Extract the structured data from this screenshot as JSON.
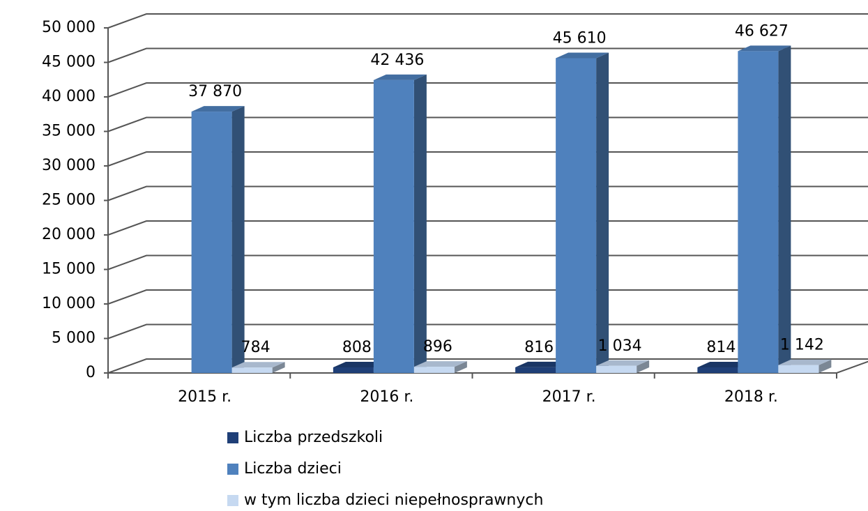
{
  "chart_data": {
    "type": "bar",
    "categories": [
      "2015 r.",
      "2016 r.",
      "2017 r.",
      "2018 r."
    ],
    "series": [
      {
        "name": "Liczba przedszkoli",
        "color": "#1f3f77",
        "values": [
          null,
          808,
          816,
          814
        ]
      },
      {
        "name": "Liczba dzieci",
        "color": "#4f81bd",
        "values": [
          37870,
          42436,
          45610,
          46627
        ],
        "value_labels": [
          "37 870",
          "42 436",
          "45 610",
          "46 627"
        ]
      },
      {
        "name": "w tym liczba dzieci niepełnosprawnych",
        "color": "#c6d9f1",
        "values": [
          784,
          896,
          1034,
          1142
        ],
        "value_labels": [
          "784",
          "896",
          "1 034",
          "1 142"
        ]
      }
    ],
    "ylim": [
      0,
      50000
    ],
    "yticks": [
      0,
      {
        "value": 5000,
        "label": "5 000"
      },
      {
        "value": 10000,
        "label": "10 000"
      },
      {
        "value": 15000,
        "label": "15 000"
      },
      {
        "value": 20000,
        "label": "20 000"
      },
      {
        "value": 25000,
        "label": "25 000"
      },
      {
        "value": 30000,
        "label": "30 000"
      },
      {
        "value": 35000,
        "label": "35 000"
      },
      {
        "value": 40000,
        "label": "40 000"
      },
      {
        "value": 45000,
        "label": "45 000"
      },
      {
        "value": 50000,
        "label": "50 000"
      }
    ],
    "grid": true,
    "legend": "bottom"
  }
}
